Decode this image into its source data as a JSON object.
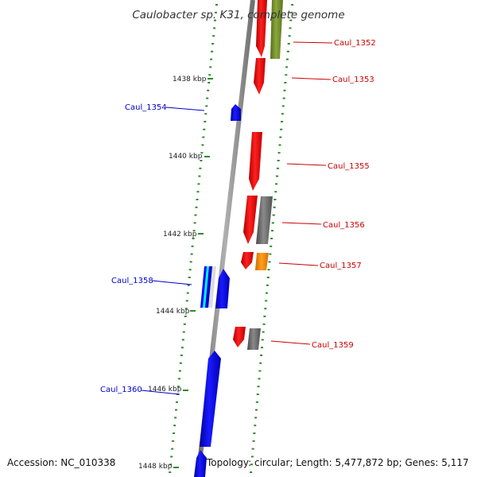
{
  "title": "Caulobacter sp. K31, complete genome",
  "footer": {
    "accession": "Accession: NC_010338",
    "topology": "Topology: circular; Length: 5,477,872 bp; Genes: 5,117"
  },
  "scale_labels": [
    "1438 kbp",
    "1440 kbp",
    "1442 kbp",
    "1444 kbp",
    "1446 kbp",
    "1448 kbp"
  ],
  "gene_labels": [
    "Caul_1352",
    "Caul_1353",
    "Caul_1354",
    "Caul_1355",
    "Caul_1356",
    "Caul_1357",
    "Caul_1358",
    "Caul_1359",
    "Caul_1360"
  ],
  "colors": {
    "forward_strand": "#ff0000",
    "reverse_strand": "#0000ff",
    "backbone": "#8a8a8a",
    "tick": "#2e8b2e",
    "olive_feature": "#6b8e23",
    "grey_feature": "#6f6f6f",
    "orange_feature": "#ff8c00",
    "cyan_feature": "#00ffff"
  }
}
